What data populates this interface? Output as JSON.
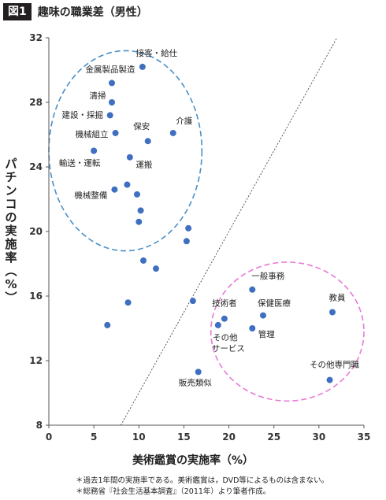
{
  "header": {
    "fig_tag": "図1",
    "title": "趣味の職業差（男性）"
  },
  "chart_data": {
    "type": "scatter",
    "title": "趣味の職業差（男性）",
    "xlabel": "美術鑑賞の実施率（%）",
    "ylabel": "パチンコの実施率（%）",
    "xlim": [
      0,
      35
    ],
    "ylim": [
      8,
      32
    ],
    "xticks": [
      0,
      5,
      10,
      15,
      20,
      25,
      30,
      35
    ],
    "yticks": [
      8,
      12,
      16,
      20,
      24,
      28,
      32
    ],
    "grid": false,
    "points": [
      {
        "x": 10.4,
        "y": 30.2,
        "label": "接客・給仕"
      },
      {
        "x": 7.0,
        "y": 29.2,
        "label": "金属製品製造"
      },
      {
        "x": 7.0,
        "y": 28.0,
        "label": "清掃"
      },
      {
        "x": 6.8,
        "y": 27.2,
        "label": "建設・採掘"
      },
      {
        "x": 7.4,
        "y": 26.1,
        "label": "機械組立"
      },
      {
        "x": 11.0,
        "y": 25.6,
        "label": "保安"
      },
      {
        "x": 13.8,
        "y": 26.1,
        "label": "介護"
      },
      {
        "x": 5.0,
        "y": 25.0,
        "label": "輸送・運転"
      },
      {
        "x": 9.0,
        "y": 24.6,
        "label": "運搬"
      },
      {
        "x": 8.7,
        "y": 22.9,
        "label": ""
      },
      {
        "x": 9.8,
        "y": 22.3,
        "label": ""
      },
      {
        "x": 7.3,
        "y": 22.6,
        "label": "機械整備"
      },
      {
        "x": 10.2,
        "y": 21.3,
        "label": ""
      },
      {
        "x": 10.0,
        "y": 20.6,
        "label": ""
      },
      {
        "x": 15.5,
        "y": 20.2,
        "label": ""
      },
      {
        "x": 15.3,
        "y": 19.4,
        "label": ""
      },
      {
        "x": 10.5,
        "y": 18.2,
        "label": ""
      },
      {
        "x": 11.9,
        "y": 17.7,
        "label": ""
      },
      {
        "x": 8.8,
        "y": 15.6,
        "label": ""
      },
      {
        "x": 16.0,
        "y": 15.7,
        "label": ""
      },
      {
        "x": 6.5,
        "y": 14.2,
        "label": ""
      },
      {
        "x": 16.6,
        "y": 11.3,
        "label": "販売類似"
      },
      {
        "x": 22.6,
        "y": 16.4,
        "label": "一般事務"
      },
      {
        "x": 19.5,
        "y": 14.6,
        "label": "技術者"
      },
      {
        "x": 23.8,
        "y": 14.8,
        "label": "保健医療"
      },
      {
        "x": 31.5,
        "y": 15.0,
        "label": "教員"
      },
      {
        "x": 18.8,
        "y": 14.2,
        "label": "その他サービス"
      },
      {
        "x": 22.6,
        "y": 14.0,
        "label": "管理"
      },
      {
        "x": 31.2,
        "y": 10.8,
        "label": "その他専門職"
      }
    ],
    "reference_line": {
      "from": [
        8,
        8
      ],
      "to": [
        32,
        32
      ]
    },
    "clusters": [
      {
        "center": [
          8.5,
          25.0
        ],
        "rx": 8.5,
        "ry": 6.2,
        "color": "#4a90c8"
      },
      {
        "center": [
          26.5,
          13.8
        ],
        "rx": 8.5,
        "ry": 4.3,
        "color": "#e87ad6"
      }
    ],
    "marker_color": "#3f6fc0"
  },
  "notes": [
    "＊過去1年間の実施率である。美術鑑賞は，DVD等によるものは含まない。",
    "＊総務省『社会生活基本調査』（2011年）より筆者作成。"
  ]
}
